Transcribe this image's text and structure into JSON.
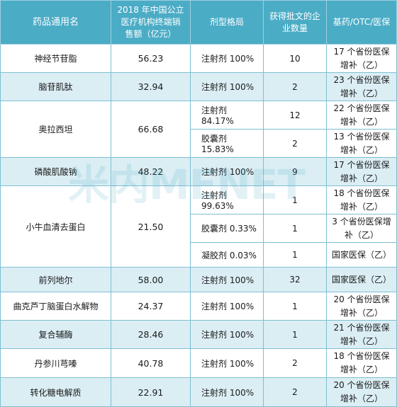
{
  "header": {
    "name": "药品通用名",
    "sales": "2018 年中国公立医疗机构终端销售额（亿元）",
    "form": "剂型格局",
    "companies": "获得批文的企业数量",
    "category": "基药/OTC/医保"
  },
  "watermark": "米内MENET",
  "rows": [
    {
      "name": "神经节苷脂",
      "sales": "56.23",
      "form": "注射剂 100%",
      "count": "10",
      "category": "17 个省份医保增补（乙）"
    },
    {
      "name": "脑苷肌肽",
      "sales": "32.94",
      "form": "注射剂 100%",
      "count": "2",
      "category": "23 个省份医保增补（乙）"
    },
    {
      "name": "奥拉西坦",
      "sales": "66.68",
      "form": "注射剂 84.17%",
      "count": "12",
      "category": "22 个省份医保增补（乙）"
    },
    {
      "form": "胶囊剂 15.83%",
      "count": "2",
      "category": "13 个省份医保增补（乙）"
    },
    {
      "name": "磷酸肌酸钠",
      "sales": "48.22",
      "form": "注射剂 100%",
      "count": "9",
      "category": "17 个省份医保增补（乙）"
    },
    {
      "name": "小牛血清去蛋白",
      "sales": "21.50",
      "form": "注射剂 99.63%",
      "count": "1",
      "category": "18 个省份医保增补（乙）"
    },
    {
      "form": "胶囊剂 0.33%",
      "count": "1",
      "category": "3 个省份医保增补（乙）"
    },
    {
      "form": "凝胶剂 0.03%",
      "count": "1",
      "category": "国家医保（乙）"
    },
    {
      "name": "前列地尔",
      "sales": "58.00",
      "form": "注射剂 100%",
      "count": "32",
      "category": "国家医保（乙）"
    },
    {
      "name": "曲克芦丁脑蛋白水解物",
      "sales": "24.37",
      "form": "注射剂 100%",
      "count": "1",
      "category": "20 个省份医保增补（乙）"
    },
    {
      "name": "复合辅酶",
      "sales": "28.46",
      "form": "注射剂 100%",
      "count": "1",
      "category": "21 个省份医保增补（乙）"
    },
    {
      "name": "丹参川芎嗪",
      "sales": "40.78",
      "form": "注射剂 100%",
      "count": "2",
      "category": "18 个省份医保增补（乙）"
    },
    {
      "name": "转化糖电解质",
      "sales": "22.91",
      "form": "注射剂 100%",
      "count": "2",
      "category": "20 个省份医保增补（乙）"
    }
  ]
}
